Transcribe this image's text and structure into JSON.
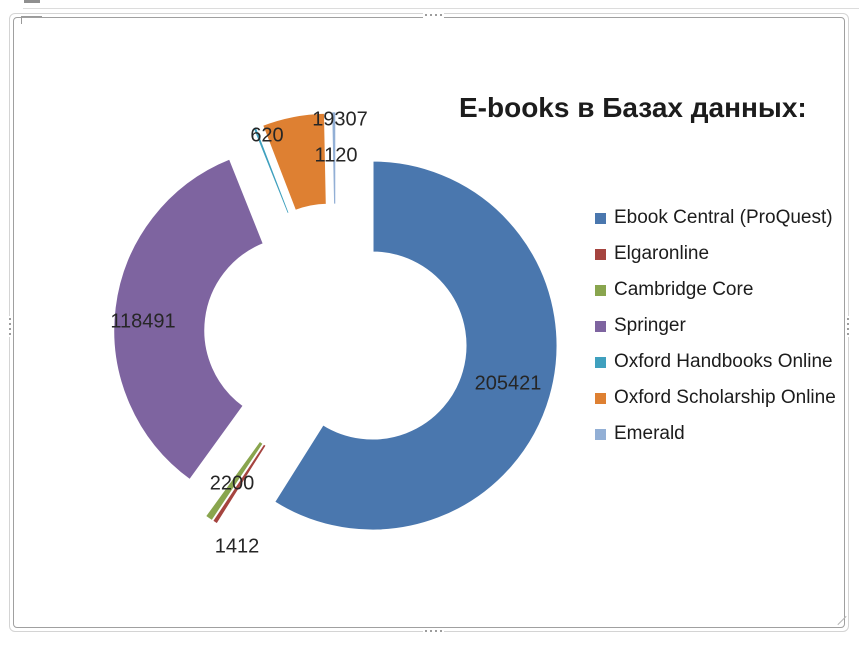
{
  "title": "E-books в Базах данных:",
  "chart_data": {
    "type": "pie",
    "subtype": "exploded-doughnut",
    "hole_ratio": 0.5,
    "start_angle": 0,
    "direction": "clockwise",
    "title": "E-books в Базах данных:",
    "categories": [
      "Ebook Central (ProQuest)",
      "Elgaronline",
      "Cambridge Core",
      "Springer",
      "Oxford Handbooks Online",
      "Oxford Scholarship Online",
      "Emerald"
    ],
    "values": [
      205421,
      1412,
      2200,
      118491,
      620,
      19307,
      1120
    ],
    "colors": [
      "#4A77AE",
      "#A5443F",
      "#89A54E",
      "#7E64A0",
      "#3FA0BE",
      "#DE8032",
      "#92AFD5"
    ],
    "legend_position": "right",
    "legend_marker": "square",
    "data_labels_visible": true
  }
}
